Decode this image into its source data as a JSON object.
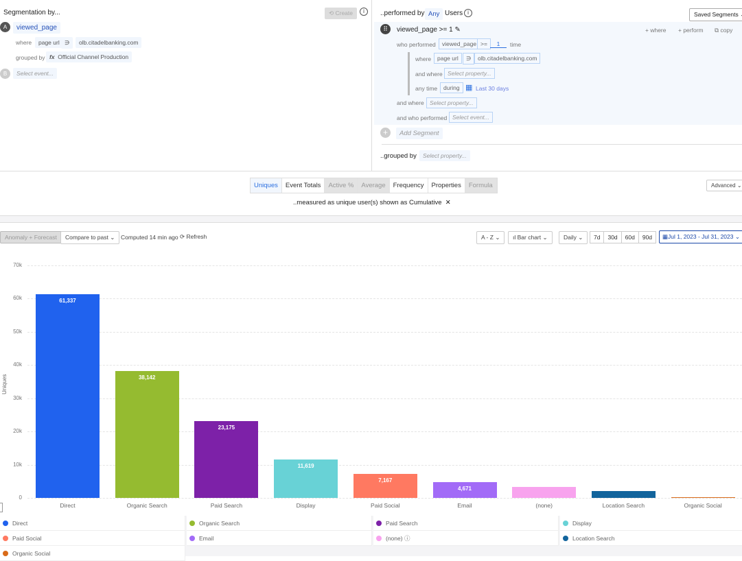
{
  "left": {
    "title": "Segmentation by...",
    "create_label": "Create",
    "event_a_letter": "A",
    "event_a": "viewed_page",
    "where_label": "where",
    "prop": "page url",
    "op": "∋",
    "value": "olb.citadelbanking.com",
    "grouped_by_label": "grouped by",
    "fx": "fx",
    "group_prop": "Official Channel Production",
    "event_b_letter": "B",
    "select_event": "Select event..."
  },
  "right": {
    "performed_by": "..performed by",
    "any": "Any",
    "users": "Users",
    "saved_segments": "Saved Segments",
    "segment_title": "viewed_page >= 1",
    "add_where": "+ where",
    "add_perform": "+ perform",
    "copy": "copy",
    "who_performed": "who performed",
    "wp_event": "viewed_page",
    "wp_op": ">=",
    "wp_count": "1",
    "wp_time": "time",
    "where": "where",
    "prop": "page url",
    "op": "∋",
    "value": "olb.citadelbanking.com",
    "and_where": "and where",
    "select_property": "Select property...",
    "any_time": "any time",
    "during": "during",
    "last30": "Last 30 days",
    "and_where2": "and where",
    "and_who": "and who performed",
    "select_event": "Select event...",
    "add_segment": "Add Segment",
    "grouped_by": "..grouped by",
    "group_select": "Select property..."
  },
  "measure": {
    "tabs": [
      {
        "label": "Uniques",
        "state": "active"
      },
      {
        "label": "Event Totals",
        "state": "normal"
      },
      {
        "label": "Active %",
        "state": "disabled"
      },
      {
        "label": "Average",
        "state": "disabled"
      },
      {
        "label": "Frequency",
        "state": "normal"
      },
      {
        "label": "Properties",
        "state": "normal"
      },
      {
        "label": "Formula",
        "state": "disabled"
      }
    ],
    "advanced": "Advanced",
    "measured_as": "..measured as unique user(s)",
    "shown_as": "shown as Cumulative",
    "close": "✕"
  },
  "toolbar": {
    "anomaly": "Anomaly + Forecast",
    "compare": "Compare to past",
    "computed": "Computed 14 min ago",
    "refresh": "Refresh",
    "sort": "A - Z",
    "chart_type": "Bar chart",
    "interval": "Daily",
    "ranges": [
      "7d",
      "30d",
      "60d",
      "90d"
    ],
    "date_range": "Jul 1, 2023 - Jul 31, 2023"
  },
  "chart_data": {
    "type": "bar",
    "ylabel": "Uniques",
    "ylim": [
      0,
      70000
    ],
    "yticks": [
      "0",
      "10k",
      "20k",
      "30k",
      "40k",
      "50k",
      "60k",
      "70k"
    ],
    "grid": true,
    "categories": [
      "Direct",
      "Organic Search",
      "Paid Search",
      "Display",
      "Paid Social",
      "Email",
      "(none)",
      "Location Search",
      "Organic Social"
    ],
    "values": [
      61337,
      38142,
      23175,
      11619,
      7167,
      4671,
      3300,
      2100,
      250
    ],
    "labels": [
      "61,337",
      "38,142",
      "23,175",
      "11,619",
      "7,167",
      "4,671",
      "",
      "",
      ""
    ],
    "colors": [
      "#2062ee",
      "#95bb30",
      "#7d21a8",
      "#68d2d6",
      "#ff7961",
      "#a26bf7",
      "#f8a3ee",
      "#12649c",
      "#d96b19"
    ],
    "legend_placement": "bottom"
  }
}
